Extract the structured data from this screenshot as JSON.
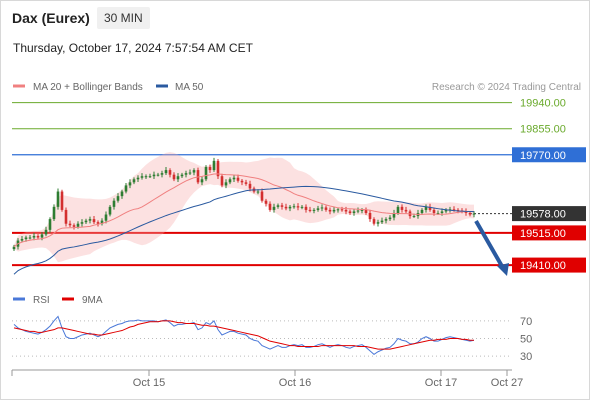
{
  "header": {
    "instrument": "Dax (Eurex)",
    "timeframe": "30 MIN",
    "timestamp": "Thursday, October 17, 2024 7:57:54 AM CET"
  },
  "credit": "Research © 2024 Trading Central",
  "colors": {
    "resistance": "#6aaa2c",
    "pivot": "#2f6fd6",
    "support": "#e00000",
    "current": "#333333",
    "candle_up": "#2e7d32",
    "candle_down": "#d32f2f",
    "bollinger": "#f6a9a9",
    "ma20": "#f08080",
    "ma50": "#2a5aa0",
    "rsi": "#4a78d8",
    "rsi_ma": "#e00000",
    "arrow": "#2a5aa0"
  },
  "chart_data": [
    {
      "type": "candlestick",
      "legend": [
        {
          "name": "MA 20 + Bollinger Bands",
          "color": "#f08080"
        },
        {
          "name": "MA 50",
          "color": "#2a5aa0"
        }
      ],
      "ylim": [
        19345,
        19965
      ],
      "x_ticks": [
        "Oct 15",
        "Oct 16",
        "Oct 17",
        "Oct 27"
      ],
      "levels": [
        {
          "label": "19940.00",
          "value": 19940,
          "kind": "resistance"
        },
        {
          "label": "19855.00",
          "value": 19855,
          "kind": "resistance"
        },
        {
          "label": "19770.00",
          "value": 19770,
          "kind": "pivot"
        },
        {
          "label": "19578.00",
          "value": 19578,
          "kind": "current"
        },
        {
          "label": "19515.00",
          "value": 19515,
          "kind": "support"
        },
        {
          "label": "19410.00",
          "value": 19410,
          "kind": "support"
        }
      ],
      "close": [
        19470,
        19490,
        19495,
        19500,
        19500,
        19505,
        19500,
        19510,
        19525,
        19560,
        19600,
        19650,
        19590,
        19545,
        19540,
        19535,
        19545,
        19550,
        19555,
        19560,
        19550,
        19545,
        19555,
        19575,
        19600,
        19620,
        19635,
        19650,
        19670,
        19680,
        19690,
        19695,
        19700,
        19700,
        19700,
        19705,
        19705,
        19710,
        19720,
        19705,
        19690,
        19700,
        19705,
        19710,
        19712,
        19720,
        19680,
        19690,
        19730,
        19720,
        19750,
        19700,
        19670,
        19680,
        19690,
        19695,
        19685,
        19680,
        19675,
        19660,
        19650,
        19650,
        19620,
        19610,
        19590,
        19600,
        19605,
        19600,
        19595,
        19600,
        19602,
        19598,
        19600,
        19590,
        19588,
        19590,
        19595,
        19598,
        19590,
        19585,
        19590,
        19592,
        19590,
        19585,
        19580,
        19585,
        19588,
        19590,
        19580,
        19560,
        19545,
        19550,
        19555,
        19560,
        19565,
        19580,
        19600,
        19590,
        19585,
        19570,
        19570,
        19580,
        19590,
        19600,
        19590,
        19580,
        19580,
        19585,
        19590,
        19592,
        19590,
        19588,
        19585,
        19580,
        19575,
        19578
      ],
      "rsi": {
        "ylim": [
          20,
          80
        ],
        "ticks": [
          "70",
          "50",
          "30"
        ],
        "legend": [
          {
            "name": "RSI",
            "color": "#4a78d8"
          },
          {
            "name": "9MA",
            "color": "#e00000"
          }
        ],
        "values": [
          66,
          62,
          60,
          58,
          57,
          56,
          55,
          57,
          60,
          64,
          70,
          75,
          62,
          52,
          50,
          50,
          52,
          54,
          55,
          56,
          54,
          52,
          54,
          58,
          62,
          64,
          66,
          67,
          69,
          70,
          70,
          71,
          70,
          70,
          70,
          70,
          69,
          70,
          71,
          68,
          64,
          66,
          66,
          67,
          67,
          68,
          60,
          62,
          68,
          66,
          70,
          60,
          54,
          56,
          58,
          58,
          56,
          55,
          54,
          50,
          48,
          47,
          42,
          40,
          38,
          40,
          42,
          40,
          40,
          42,
          43,
          42,
          43,
          40,
          40,
          41,
          43,
          44,
          42,
          40,
          42,
          43,
          42,
          40,
          39,
          41,
          42,
          43,
          40,
          36,
          32,
          35,
          37,
          39,
          40,
          44,
          50,
          48,
          47,
          44,
          44,
          46,
          50,
          52,
          50,
          47,
          47,
          49,
          51,
          52,
          51,
          50,
          49,
          48,
          47,
          48
        ],
        "ma": [
          62,
          61,
          60,
          59,
          58,
          58,
          57,
          57,
          58,
          59,
          60,
          62,
          62,
          61,
          60,
          59,
          58,
          57,
          56,
          55,
          55,
          54,
          54,
          55,
          56,
          57,
          58,
          59,
          61,
          63,
          64,
          66,
          67,
          68,
          69,
          69,
          69,
          70,
          70,
          70,
          69,
          68,
          68,
          67,
          67,
          67,
          66,
          65,
          65,
          64,
          64,
          63,
          62,
          61,
          60,
          59,
          58,
          57,
          56,
          55,
          54,
          53,
          51,
          49,
          47,
          46,
          45,
          44,
          43,
          42,
          42,
          41,
          41,
          41,
          41,
          41,
          41,
          42,
          42,
          42,
          42,
          42,
          42,
          42,
          42,
          42,
          41,
          41,
          41,
          40,
          39,
          38,
          38,
          38,
          38,
          39,
          40,
          41,
          42,
          43,
          44,
          45,
          46,
          47,
          48,
          48,
          49,
          49,
          49,
          50,
          50,
          50,
          49,
          49,
          48,
          48
        ]
      }
    }
  ]
}
